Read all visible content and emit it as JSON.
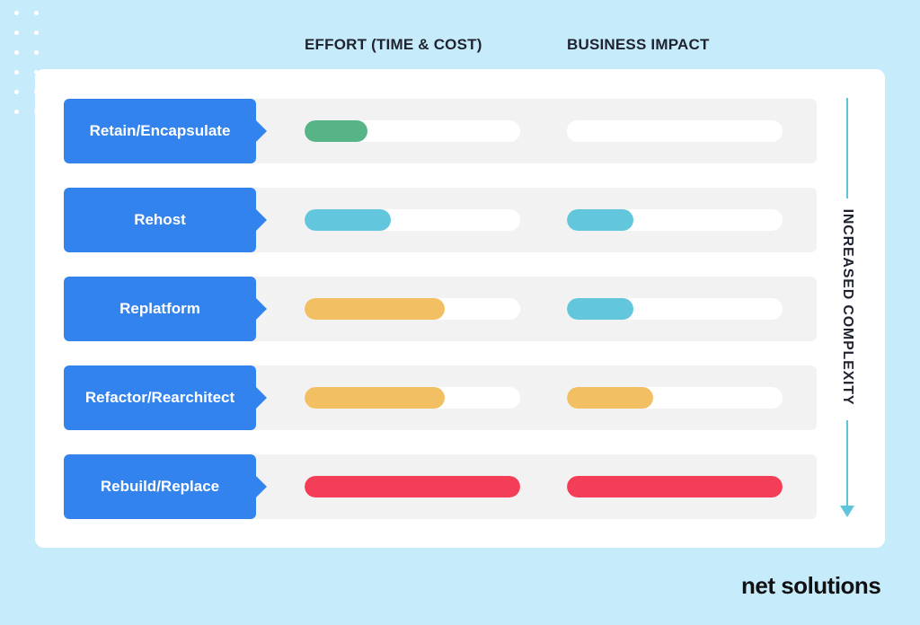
{
  "chart_data": {
    "type": "bar",
    "title": "",
    "categories": [
      "Retain/Encapsulate",
      "Rehost",
      "Replatform",
      "Refactor/Rearchitect",
      "Rebuild/Replace"
    ],
    "series": [
      {
        "name": "EFFORT (TIME & COST)",
        "values": [
          0.29,
          0.4,
          0.65,
          0.65,
          1.0
        ]
      },
      {
        "name": "BUSINESS IMPACT",
        "values": [
          0.0,
          0.31,
          0.31,
          0.4,
          1.0
        ]
      }
    ],
    "value_scale": "fraction of bar filled (0–1)",
    "bar_colors": {
      "effort": [
        "#57b487",
        "#62c7dc",
        "#f2bf62",
        "#f2bf62",
        "#f43e57"
      ],
      "impact": [
        "#ffffff",
        "#62c7dc",
        "#62c7dc",
        "#f2bf62",
        "#f43e57"
      ]
    },
    "axis_label": "INCREASED COMPLEXITY",
    "axis_direction": "down"
  },
  "headers": {
    "effort": "EFFORT (TIME & COST)",
    "impact": "BUSINESS IMPACT"
  },
  "brand": {
    "logo_text": "net solutions"
  },
  "colors": {
    "background": "#c6ecfb",
    "label_box": "#3283ee",
    "track": "#ffffff",
    "row": "#f2f2f2",
    "axis": "#5fc6da"
  }
}
